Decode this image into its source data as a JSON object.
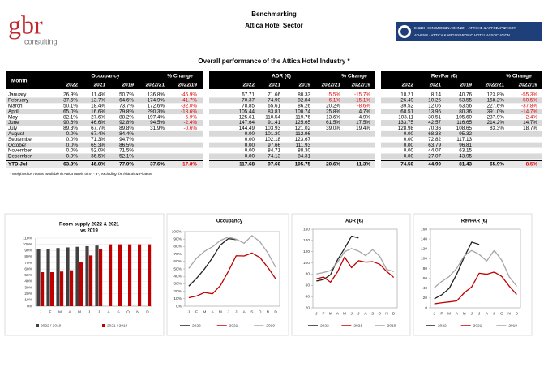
{
  "header": {
    "logo": "gbr",
    "logo_sub": "consulting",
    "title": "Benchmarking",
    "subtitle": "Attica Hotel Sector",
    "association_gr": "ΕΝΩΣΗ ΞΕΝΟΔΟΧΩΝ ΑΘΗΝΩΝ - ΑΤΤΙΚΗΣ & ΑΡΓΟΣΑΡΩΝΙΚΟΥ",
    "association_en": "ATHENS - ATTICA & ARGOSARONIC HOTEL ASSOCIATION"
  },
  "table": {
    "title": "Overall performance of the Attica Hotel Industry *",
    "column_header": "Month",
    "groups": [
      "Occupancy",
      "% Change",
      "ADR (€)",
      "% Change",
      "RevPar (€)",
      "% Change"
    ],
    "subheaders": [
      "2022",
      "2021",
      "2019",
      "2022/21",
      "2022/19"
    ],
    "rows": [
      {
        "month": "January",
        "occupancy": [
          "26.9%",
          "11.4%",
          "50.7%",
          "136.8%",
          "-46.9%"
        ],
        "adr": [
          "67.71",
          "71.66",
          "80.33",
          "-5.5%",
          "-15.7%"
        ],
        "revpar": [
          "18.21",
          "8.14",
          "40.76",
          "123.8%",
          "-55.3%"
        ]
      },
      {
        "month": "February",
        "occupancy": [
          "37.6%",
          "13.7%",
          "64.6%",
          "174.9%",
          "-41.7%"
        ],
        "adr": [
          "70.37",
          "74.90",
          "82.84",
          "-6.1%",
          "-15.1%"
        ],
        "revpar": [
          "26.49",
          "10.26",
          "53.55",
          "158.2%",
          "-50.5%"
        ]
      },
      {
        "month": "March",
        "occupancy": [
          "50.1%",
          "18.4%",
          "73.7%",
          "172.6%",
          "-32.0%"
        ],
        "adr": [
          "78.85",
          "65.61",
          "86.26",
          "20.2%",
          "-8.6%"
        ],
        "revpar": [
          "39.52",
          "12.06",
          "63.56",
          "227.6%",
          "-37.8%"
        ]
      },
      {
        "month": "April",
        "occupancy": [
          "65.0%",
          "16.6%",
          "79.8%",
          "290.3%",
          "-18.6%"
        ],
        "adr": [
          "105.44",
          "83.81",
          "100.74",
          "25.8%",
          "4.7%"
        ],
        "revpar": [
          "68.51",
          "13.95",
          "80.36",
          "391.0%",
          "-14.7%"
        ]
      },
      {
        "month": "May",
        "occupancy": [
          "82.1%",
          "27.6%",
          "88.2%",
          "197.4%",
          "-6.9%"
        ],
        "adr": [
          "125.61",
          "110.54",
          "119.76",
          "13.6%",
          "4.9%"
        ],
        "revpar": [
          "103.11",
          "30.51",
          "105.60",
          "237.9%",
          "-2.4%"
        ]
      },
      {
        "month": "June",
        "occupancy": [
          "90.6%",
          "46.6%",
          "92.8%",
          "94.5%",
          "-2.4%"
        ],
        "adr": [
          "147.64",
          "91.41",
          "125.65",
          "61.5%",
          "17.5%"
        ],
        "revpar": [
          "133.75",
          "42.57",
          "116.65",
          "214.2%",
          "14.7%"
        ]
      },
      {
        "month": "July",
        "occupancy": [
          "89.3%",
          "67.7%",
          "89.8%",
          "31.9%",
          "-0.6%"
        ],
        "adr": [
          "144.49",
          "103.93",
          "121.02",
          "39.0%",
          "19.4%"
        ],
        "revpar": [
          "128.98",
          "70.36",
          "108.65",
          "83.3%",
          "18.7%"
        ]
      },
      {
        "month": "August",
        "occupancy": [
          "0.0%",
          "67.4%",
          "84.4%"
        ],
        "adr": [
          "0.00",
          "101.30",
          "112.96"
        ],
        "revpar": [
          "0.00",
          "68.33",
          "95.32"
        ]
      },
      {
        "month": "September",
        "occupancy": [
          "0.0%",
          "71.3%",
          "94.7%"
        ],
        "adr": [
          "0.00",
          "102.18",
          "123.67"
        ],
        "revpar": [
          "0.00",
          "72.82",
          "117.13"
        ]
      },
      {
        "month": "October",
        "occupancy": [
          "0.0%",
          "65.3%",
          "86.5%"
        ],
        "adr": [
          "0.00",
          "97.66",
          "111.93"
        ],
        "revpar": [
          "0.00",
          "63.79",
          "96.81"
        ]
      },
      {
        "month": "November",
        "occupancy": [
          "0.0%",
          "52.0%",
          "71.5%"
        ],
        "adr": [
          "0.00",
          "84.71",
          "88.30"
        ],
        "revpar": [
          "0.00",
          "44.07",
          "63.15"
        ]
      },
      {
        "month": "December",
        "occupancy": [
          "0.0%",
          "36.5%",
          "52.1%"
        ],
        "adr": [
          "0.00",
          "74.13",
          "84.31"
        ],
        "revpar": [
          "0.00",
          "27.07",
          "43.95"
        ]
      },
      {
        "month": "YTD Jul",
        "occupancy": [
          "63.3%",
          "46.0%",
          "77.0%",
          "37.6%",
          "-17.8%"
        ],
        "adr": [
          "117.68",
          "97.60",
          "105.75",
          "20.6%",
          "11.3%"
        ],
        "revpar": [
          "74.50",
          "44.90",
          "81.43",
          "65.9%",
          "-8.5%"
        ]
      }
    ],
    "footnote": "* Weighted on rooms available in Attica hotels of 5* - 3*, excluding the islands & Piraeus"
  },
  "chart_data": [
    {
      "type": "bar",
      "title": [
        "Room supply 2022 & 2021",
        "vs 2019"
      ],
      "categories": [
        "J",
        "F",
        "M",
        "A",
        "M",
        "J",
        "J",
        "A",
        "S",
        "O",
        "N",
        "D"
      ],
      "series": [
        {
          "name": "2022 / 2019",
          "color": "#404040",
          "values": [
            93,
            93,
            94,
            95,
            96,
            97,
            98,
            null,
            null,
            null,
            null,
            null
          ]
        },
        {
          "name": "2021 / 2019",
          "color": "#c00000",
          "values": [
            55,
            55,
            56,
            58,
            72,
            82,
            93,
            100,
            100,
            100,
            100,
            100
          ]
        }
      ],
      "ylim": [
        0,
        110
      ],
      "yticks": [
        {
          "value": 0,
          "label": "0%"
        },
        {
          "value": 10,
          "label": "10%"
        },
        {
          "value": 20,
          "label": "20%"
        },
        {
          "value": 30,
          "label": "30%"
        },
        {
          "value": 40,
          "label": "40%"
        },
        {
          "value": 50,
          "label": "50%"
        },
        {
          "value": 60,
          "label": "60%"
        },
        {
          "value": 70,
          "label": "70%"
        },
        {
          "value": 80,
          "label": "80%"
        },
        {
          "value": 90,
          "label": "90%"
        },
        {
          "value": 100,
          "label": "100%"
        },
        {
          "value": 110,
          "label": "110%"
        }
      ],
      "grid": true
    },
    {
      "type": "line",
      "title": "Occupancy",
      "categories": [
        "J",
        "F",
        "M",
        "A",
        "M",
        "J",
        "J",
        "A",
        "S",
        "O",
        "N",
        "D"
      ],
      "series": [
        {
          "name": "2022",
          "color": "#222222",
          "values": [
            26.9,
            37.6,
            50.1,
            65.0,
            82.1,
            90.6,
            89.3,
            null,
            null,
            null,
            null,
            null
          ]
        },
        {
          "name": "2021",
          "color": "#c00000",
          "values": [
            11.4,
            13.7,
            18.4,
            16.6,
            27.6,
            46.6,
            67.7,
            67.4,
            71.3,
            65.3,
            52.0,
            36.5
          ]
        },
        {
          "name": "2019",
          "color": "#a6a6a6",
          "values": [
            50.7,
            64.6,
            73.7,
            79.8,
            88.2,
            92.8,
            89.8,
            84.4,
            94.7,
            86.5,
            71.5,
            52.1
          ]
        }
      ],
      "ylim": [
        0,
        100
      ],
      "yticks": [
        {
          "value": 0,
          "label": "0%"
        },
        {
          "value": 10,
          "label": "10%"
        },
        {
          "value": 20,
          "label": "20%"
        },
        {
          "value": 30,
          "label": "30%"
        },
        {
          "value": 40,
          "label": "40%"
        },
        {
          "value": 50,
          "label": "50%"
        },
        {
          "value": 60,
          "label": "60%"
        },
        {
          "value": 70,
          "label": "70%"
        },
        {
          "value": 80,
          "label": "80%"
        },
        {
          "value": 90,
          "label": "90%"
        },
        {
          "value": 100,
          "label": "100%"
        }
      ],
      "grid": false
    },
    {
      "type": "line",
      "title": "ADR (€)",
      "categories": [
        "J",
        "F",
        "M",
        "A",
        "M",
        "J",
        "J",
        "A",
        "S",
        "O",
        "N",
        "D"
      ],
      "series": [
        {
          "name": "2022",
          "color": "#222222",
          "values": [
            67.71,
            70.37,
            78.85,
            105.44,
            125.61,
            147.64,
            144.49,
            null,
            null,
            null,
            null,
            null
          ]
        },
        {
          "name": "2021",
          "color": "#c00000",
          "values": [
            71.66,
            74.9,
            65.61,
            83.81,
            110.54,
            91.41,
            103.93,
            101.3,
            102.18,
            97.66,
            84.71,
            74.13
          ]
        },
        {
          "name": "2019",
          "color": "#a6a6a6",
          "values": [
            80.33,
            82.84,
            86.26,
            100.74,
            119.76,
            125.65,
            121.02,
            112.96,
            123.67,
            111.93,
            88.3,
            84.31
          ]
        }
      ],
      "ylim": [
        20,
        160
      ],
      "yticks": [
        20,
        40,
        60,
        80,
        100,
        120,
        140,
        160
      ],
      "grid": false
    },
    {
      "type": "line",
      "title": "RevPAR (€)",
      "categories": [
        "J",
        "F",
        "M",
        "A",
        "M",
        "J",
        "J",
        "A",
        "S",
        "O",
        "N",
        "D"
      ],
      "series": [
        {
          "name": "2022",
          "color": "#222222",
          "values": [
            18.21,
            26.49,
            39.52,
            68.51,
            103.11,
            133.75,
            128.98,
            null,
            null,
            null,
            null,
            null
          ]
        },
        {
          "name": "2021",
          "color": "#c00000",
          "values": [
            8.14,
            10.26,
            12.06,
            13.95,
            30.51,
            42.57,
            70.36,
            68.33,
            72.82,
            63.79,
            44.07,
            27.07
          ]
        },
        {
          "name": "2019",
          "color": "#a6a6a6",
          "values": [
            40.76,
            53.55,
            63.56,
            80.36,
            105.6,
            116.65,
            108.65,
            95.32,
            117.13,
            96.81,
            63.15,
            43.95
          ]
        }
      ],
      "ylim": [
        0,
        160
      ],
      "yticks": [
        0,
        20,
        40,
        60,
        80,
        100,
        120,
        140,
        160
      ],
      "grid": false
    }
  ]
}
